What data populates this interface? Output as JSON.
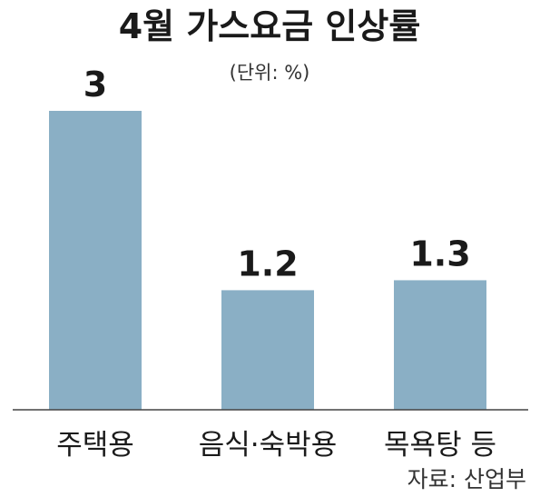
{
  "chart_data": {
    "type": "bar",
    "title": "4월 가스요금 인상률",
    "subtitle": "(단위: %)",
    "categories": [
      "주택용",
      "음식·숙박용",
      "목욕탕 등"
    ],
    "values": [
      3,
      1.2,
      1.3
    ],
    "value_labels": [
      "3",
      "1.2",
      "1.3"
    ],
    "xlabel": "",
    "ylabel": "",
    "ylim": [
      0,
      3
    ],
    "grid": false,
    "legend": "none",
    "bar_color": "#8aafc5",
    "source": "자료: 산업부"
  }
}
